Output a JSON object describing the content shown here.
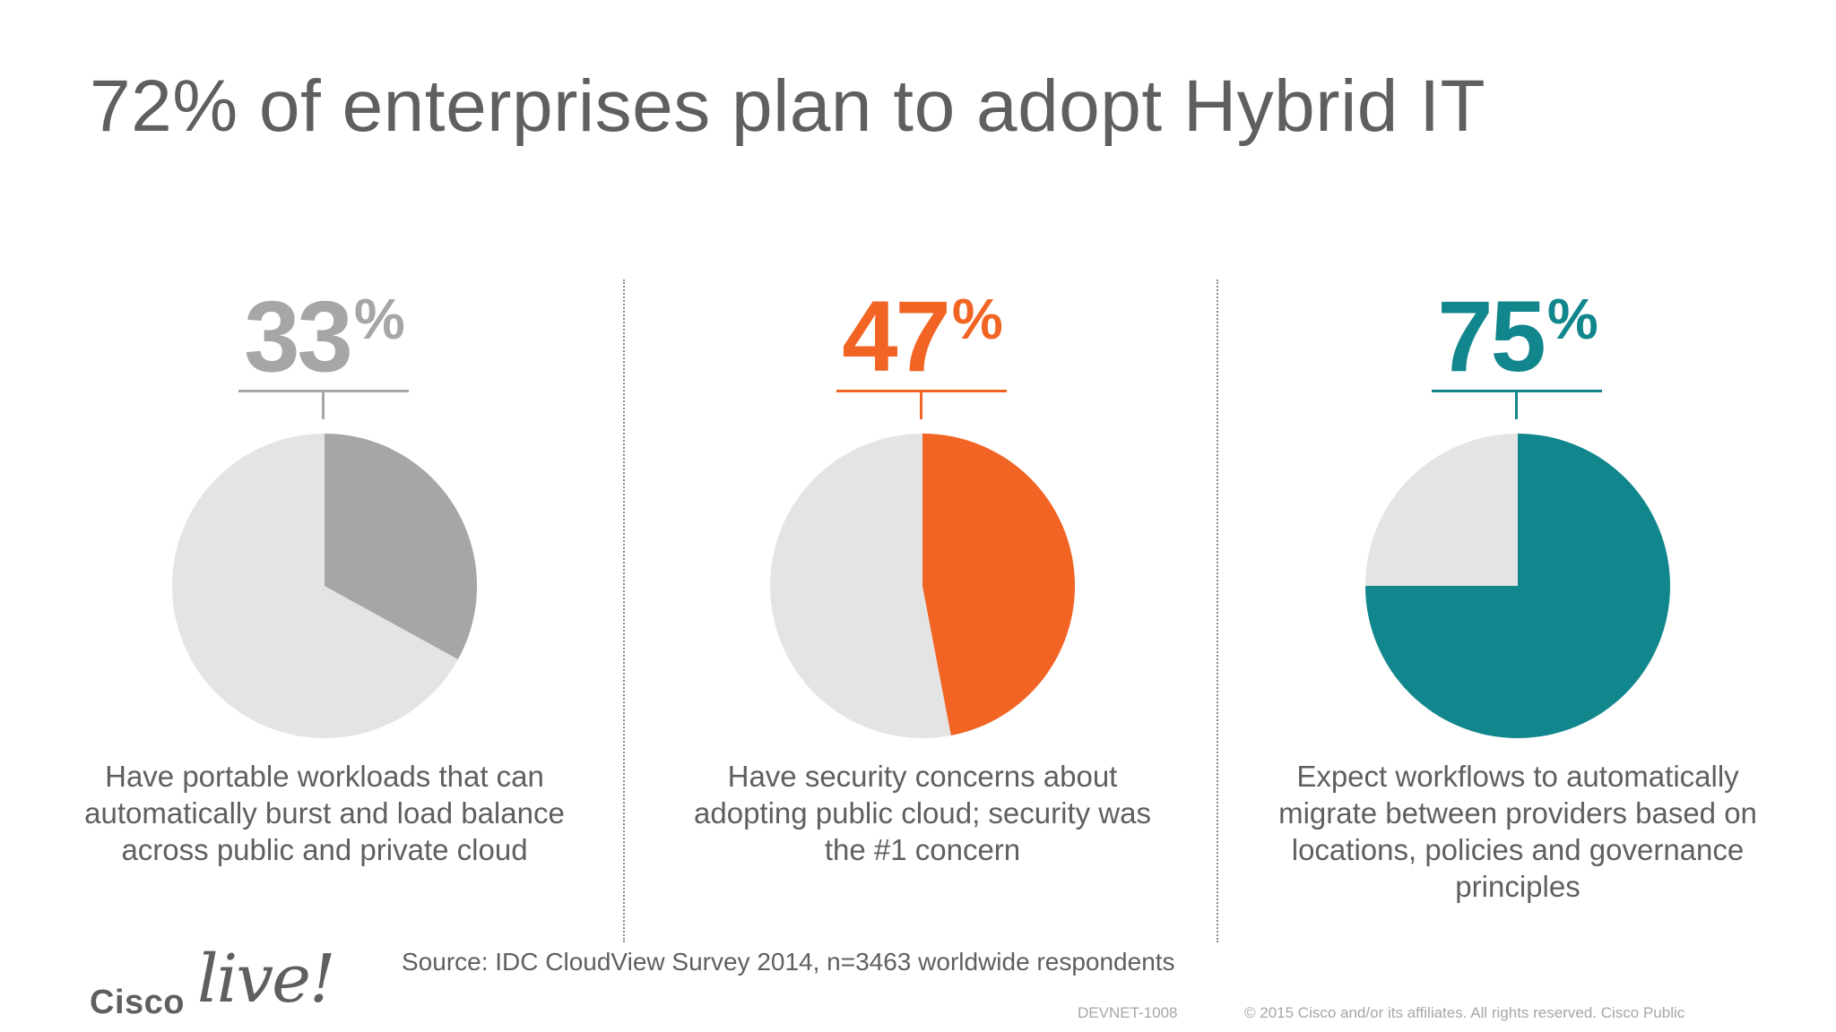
{
  "slide": {
    "title": "72% of enterprises plan to adopt Hybrid IT",
    "source": "Source: IDC CloudView Survey 2014, n=3463 worldwide respondents",
    "footer": {
      "session_id": "DEVNET-1008",
      "copyright": "© 2015  Cisco and/or its affiliates. All rights reserved.   Cisco Public"
    },
    "logo": {
      "cisco": "Cisco",
      "live": "live!"
    }
  },
  "chart_data": [
    {
      "type": "pie",
      "value": 33,
      "value_label": "33",
      "unit": "%",
      "description": "Have portable workloads that can automatically burst and load balance across public and private cloud",
      "colors": {
        "value": "#a6a6a6",
        "rest": "#e4e4e4",
        "text": "#a6a6a6"
      }
    },
    {
      "type": "pie",
      "value": 47,
      "value_label": "47",
      "unit": "%",
      "description": "Have security concerns about adopting public cloud; security was the #1 concern",
      "colors": {
        "value": "#f26424",
        "rest": "#e4e4e4",
        "text": "#f26424"
      }
    },
    {
      "type": "pie",
      "value": 75,
      "value_label": "75",
      "unit": "%",
      "description": "Expect workflows to automatically migrate between providers based on locations, policies and governance principles",
      "colors": {
        "value": "#11868d",
        "rest": "#e4e4e4",
        "text": "#11868d"
      }
    }
  ]
}
